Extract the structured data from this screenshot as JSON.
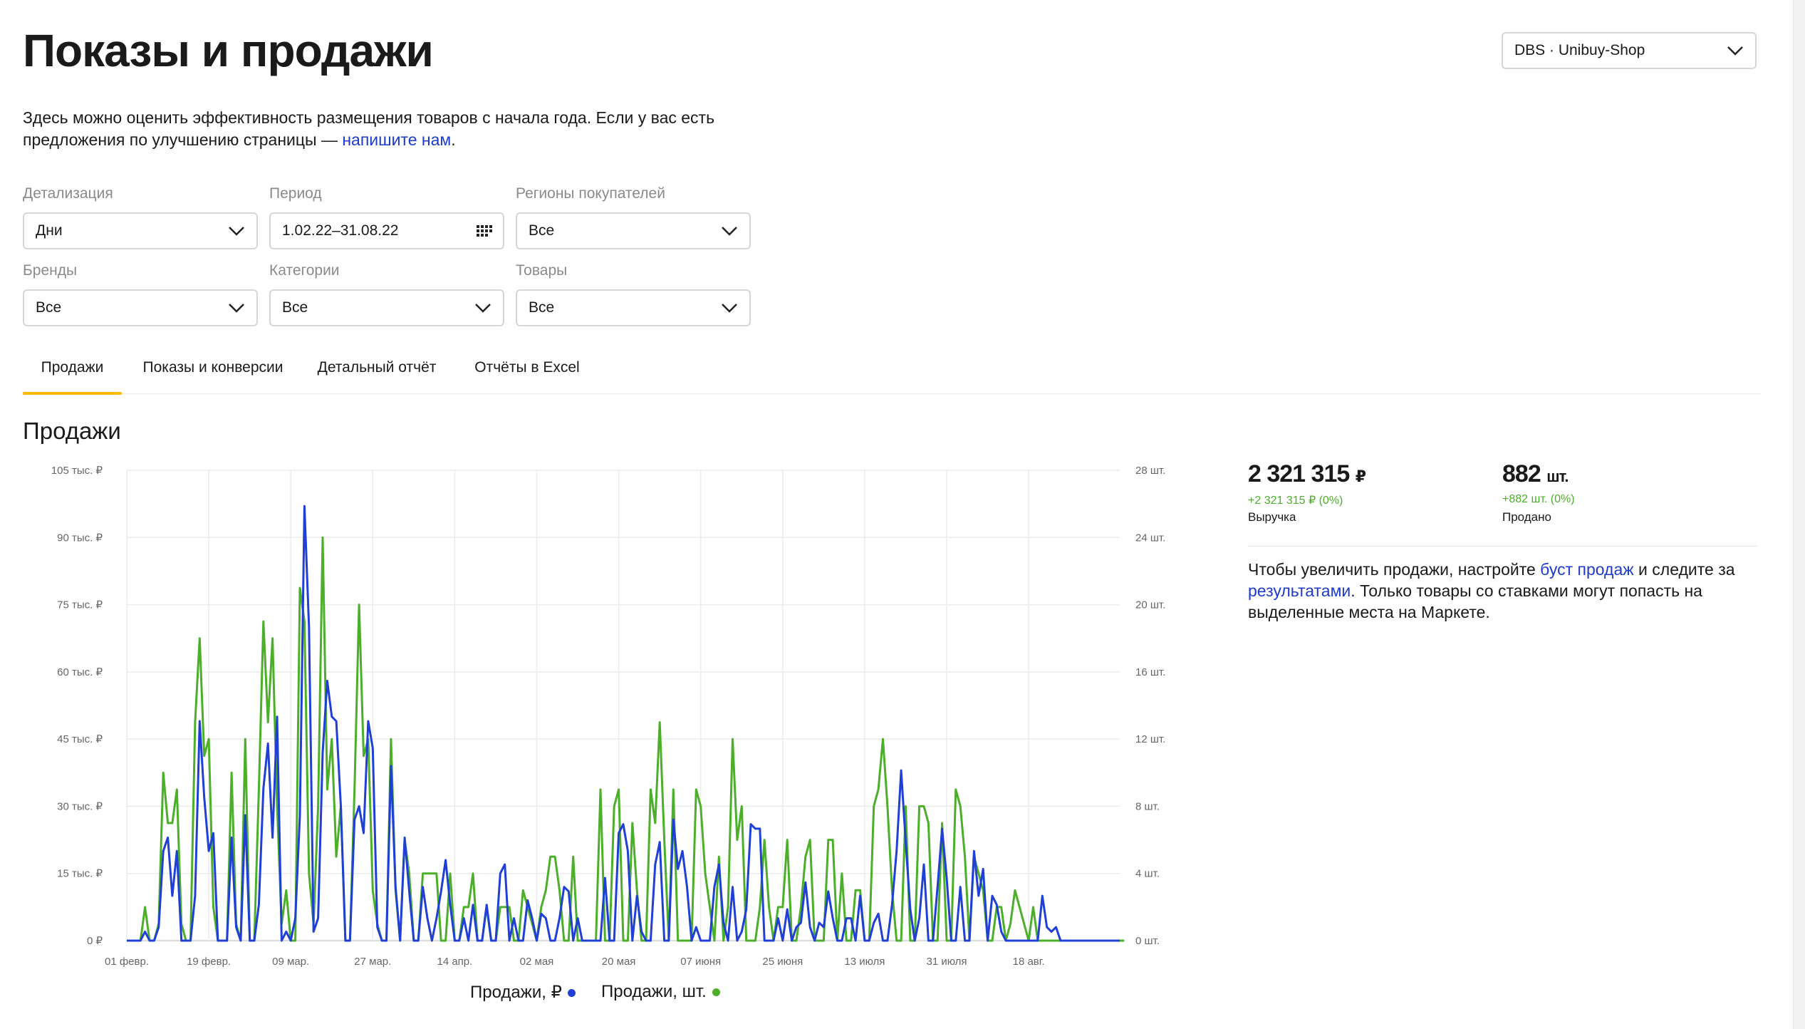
{
  "header": {
    "title": "Показы и продажи",
    "shop_select": "DBS · Unibuy-Shop"
  },
  "intro": {
    "text": "Здесь можно оценить эффективность размещения товаров с начала года. Если у вас есть предложения по улучшению страницы —",
    "link": "напишите нам",
    "end": "."
  },
  "filters": {
    "detail": {
      "label": "Детализация",
      "value": "Дни"
    },
    "period": {
      "label": "Период",
      "value": "1.02.22–31.08.22"
    },
    "regions": {
      "label": "Регионы покупателей",
      "value": "Все"
    },
    "brands": {
      "label": "Бренды",
      "value": "Все"
    },
    "categories": {
      "label": "Категории",
      "value": "Все"
    },
    "goods": {
      "label": "Товары",
      "value": "Все"
    }
  },
  "tabs": [
    "Продажи",
    "Показы и конверсии",
    "Детальный отчёт",
    "Отчёты в Excel"
  ],
  "section_title": "Продажи",
  "kpis": {
    "revenue": {
      "value": "2 321 315",
      "unit": "₽",
      "delta": "+2 321 315 ₽ (0%)",
      "label": "Выручка"
    },
    "sold": {
      "value": "882",
      "unit": "шт.",
      "delta": "+882 шт. (0%)",
      "label": "Продано"
    }
  },
  "promo": {
    "t1": "Чтобы увеличить продажи, настройте ",
    "l1": "буст продаж",
    "t2": " и следите за ",
    "l2": "результатами",
    "t3": ". Только товары со ставками могут попасть на выделенные места на Маркете."
  },
  "colors": {
    "revenue": "#1f3fd6",
    "units": "#4caf2a",
    "tab_accent": "#ffb800",
    "link": "#1d3bcc"
  },
  "chart_data": {
    "type": "line",
    "x_start": "2022-02-01",
    "x_end": "2022-08-31",
    "x_ticks": [
      "01 февр.",
      "19 февр.",
      "09 мар.",
      "27 мар.",
      "14 апр.",
      "02 мая",
      "20 мая",
      "07 июня",
      "25 июня",
      "13 июля",
      "31 июля",
      "18 авг."
    ],
    "y_left": {
      "min": 0,
      "max": 105000,
      "ticks": [
        "0 ₽",
        "15 тыс. ₽",
        "30 тыс. ₽",
        "45 тыс. ₽",
        "60 тыс. ₽",
        "75 тыс. ₽",
        "90 тыс. ₽",
        "105 тыс. ₽"
      ]
    },
    "y_right": {
      "min": 0,
      "max": 28,
      "ticks": [
        "0 шт.",
        "4 шт.",
        "8 шт.",
        "12 шт.",
        "16 шт.",
        "20 шт.",
        "24 шт.",
        "28 шт."
      ]
    },
    "grid": true,
    "legend_position": "bottom",
    "series": [
      {
        "name": "Продажи, ₽",
        "axis": "left",
        "color": "#1f3fd6",
        "values": [
          0,
          0,
          0,
          0,
          2000,
          0,
          0,
          3000,
          20000,
          23000,
          10000,
          20000,
          0,
          0,
          0,
          10000,
          49000,
          32000,
          20000,
          24000,
          0,
          0,
          0,
          23000,
          3000,
          0,
          28000,
          0,
          0,
          8000,
          34000,
          44000,
          23000,
          50000,
          0,
          2000,
          0,
          5000,
          28000,
          97000,
          70000,
          2000,
          5000,
          42000,
          58000,
          50000,
          49000,
          30000,
          0,
          0,
          27000,
          30000,
          24000,
          49000,
          43000,
          3000,
          0,
          0,
          39000,
          12000,
          0,
          23000,
          11000,
          0,
          0,
          12000,
          5000,
          0,
          5000,
          11000,
          18000,
          8000,
          0,
          0,
          5000,
          0,
          8000,
          0,
          0,
          8000,
          0,
          0,
          15000,
          17000,
          0,
          5000,
          0,
          0,
          9000,
          5000,
          0,
          6000,
          5000,
          0,
          0,
          5000,
          12000,
          11000,
          0,
          5000,
          0,
          0,
          0,
          0,
          0,
          14000,
          0,
          0,
          24000,
          26000,
          20000,
          0,
          10000,
          2000,
          0,
          0,
          17000,
          22000,
          0,
          0,
          27000,
          16000,
          20000,
          12000,
          0,
          3000,
          0,
          0,
          0,
          12000,
          17000,
          4000,
          0,
          12000,
          0,
          2000,
          7000,
          26000,
          25000,
          25000,
          0,
          0,
          0,
          5000,
          0,
          7000,
          0,
          3000,
          4000,
          13000,
          3000,
          0,
          4000,
          3000,
          11000,
          5000,
          0,
          0,
          5000,
          5000,
          0,
          10000,
          0,
          0,
          4000,
          6000,
          0,
          0,
          8000,
          20000,
          38000,
          22000,
          7000,
          0,
          5000,
          17000,
          0,
          0,
          12000,
          25000,
          14000,
          0,
          0,
          12000,
          0,
          0,
          20000,
          10000,
          16000,
          0,
          10000,
          8000,
          2000,
          0,
          0,
          0,
          0,
          0,
          0,
          0,
          0,
          10000,
          3000,
          2000,
          3000,
          0,
          0,
          0,
          0,
          0,
          0,
          0,
          0,
          0,
          0,
          0,
          0,
          0,
          0
        ]
      },
      {
        "name": "Продажи, шт.",
        "axis": "right",
        "color": "#4caf2a",
        "values": [
          0,
          0,
          0,
          0,
          2,
          0,
          0,
          1,
          10,
          7,
          7,
          9,
          1,
          0,
          0,
          13,
          18,
          11,
          12,
          2,
          0,
          0,
          0,
          10,
          1,
          0,
          12,
          0,
          0,
          9,
          19,
          13,
          18,
          8,
          1,
          3,
          0,
          0,
          21,
          19,
          4,
          1,
          8,
          24,
          9,
          12,
          5,
          8,
          0,
          0,
          9,
          20,
          11,
          12,
          3,
          1,
          0,
          0,
          12,
          3,
          0,
          6,
          4,
          0,
          0,
          4,
          4,
          4,
          4,
          0,
          0,
          4,
          0,
          0,
          2,
          2,
          4,
          0,
          0,
          2,
          0,
          0,
          2,
          2,
          2,
          0,
          0,
          3,
          2,
          1,
          0,
          2,
          3,
          5,
          5,
          3,
          0,
          0,
          5,
          0,
          0,
          0,
          0,
          0,
          9,
          0,
          0,
          8,
          9,
          0,
          0,
          7,
          3,
          0,
          0,
          9,
          7,
          13,
          6,
          0,
          9,
          0,
          0,
          0,
          0,
          9,
          8,
          4,
          2,
          0,
          5,
          0,
          2,
          12,
          6,
          8,
          0,
          0,
          0,
          2,
          6,
          2,
          0,
          2,
          2,
          6,
          0,
          0,
          2,
          5,
          6,
          0,
          0,
          0,
          6,
          6,
          0,
          4,
          0,
          0,
          3,
          3,
          0,
          0,
          8,
          9,
          12,
          8,
          3,
          0,
          0,
          8,
          0,
          0,
          8,
          8,
          7,
          0,
          0,
          7,
          0,
          0,
          9,
          8,
          5,
          0,
          5,
          4,
          3,
          0,
          0,
          2,
          2,
          0,
          1,
          3,
          2,
          1,
          0,
          2,
          0,
          0,
          0,
          0,
          0,
          0,
          0,
          0,
          0,
          0,
          0,
          0,
          0,
          0,
          0,
          0,
          0,
          0,
          0,
          0
        ]
      }
    ]
  }
}
